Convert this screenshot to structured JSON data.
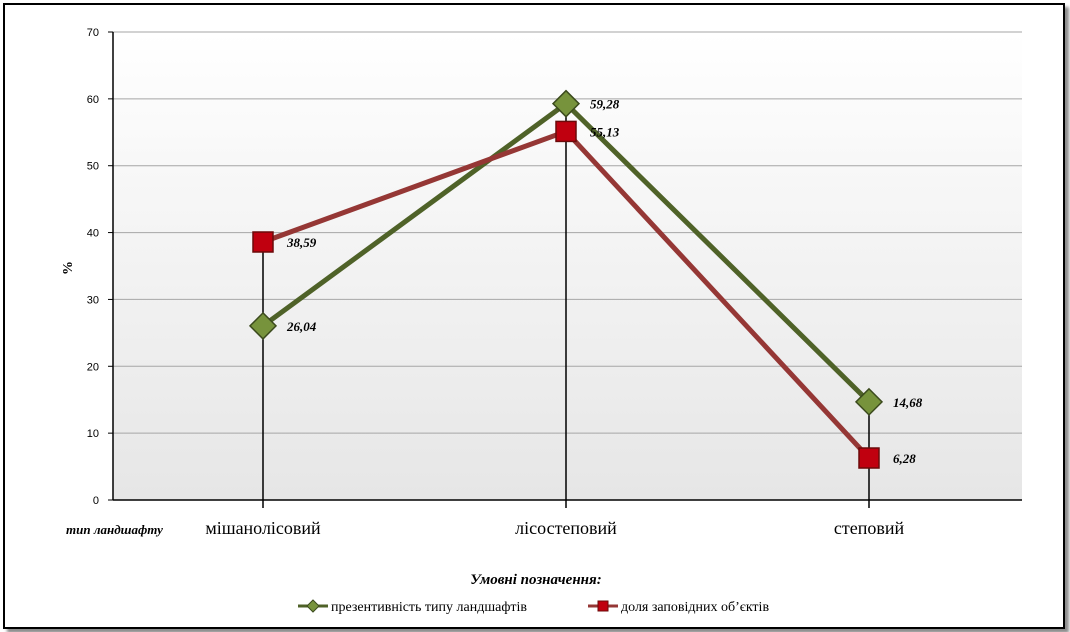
{
  "chart_data": {
    "type": "line",
    "categories": [
      "мішанолісовий",
      "лісостеповий",
      "степовий"
    ],
    "xlabel": "тип ландшафту",
    "ylabel": "%",
    "ylim": [
      0,
      70
    ],
    "yticks": [
      0,
      10,
      20,
      30,
      40,
      50,
      60,
      70
    ],
    "grid": true,
    "series": [
      {
        "name": "презентивність типу ландшафтів",
        "values": [
          26.04,
          59.28,
          14.68
        ],
        "labels": [
          "26,04",
          "59,28",
          "14,68"
        ],
        "color": "#4f6228",
        "marker_color": "#77933c",
        "marker": "diamond"
      },
      {
        "name": "доля заповідних об’єктів",
        "values": [
          38.59,
          55.13,
          6.28
        ],
        "labels": [
          "38,59",
          "55,13",
          "6,28"
        ],
        "color": "#953735",
        "marker_color": "#c0000f",
        "marker": "square"
      }
    ],
    "legend": {
      "title": "Умовні позначення:",
      "position": "bottom"
    },
    "colors": {
      "plot_background_top": "#ffffff",
      "plot_background_bottom": "#e6e6e6",
      "gridline": "#a6a6a6",
      "drop_line": "#000000"
    }
  }
}
